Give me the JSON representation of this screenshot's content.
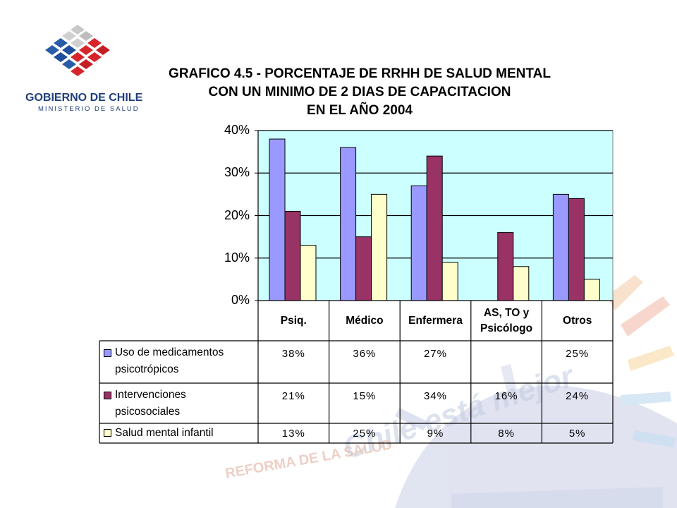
{
  "logo": {
    "line1": "GOBIERNO DE CHILE",
    "line2": "MINISTERIO DE SALUD"
  },
  "chart_data": {
    "type": "bar",
    "title_lines": [
      "GRAFICO 4.5 - PORCENTAJE DE RRHH DE SALUD MENTAL",
      "CON UN MINIMO DE 2 DIAS DE CAPACITACION",
      "EN EL AÑO 2004"
    ],
    "categories": [
      "Psiq.",
      "Médico",
      "Enfermera",
      "AS, TO y Psicólogo",
      "Otros"
    ],
    "category_lines": [
      [
        "Psiq."
      ],
      [
        "Médico"
      ],
      [
        "Enfermera"
      ],
      [
        "AS, TO y",
        "Psicólogo"
      ],
      [
        "Otros"
      ]
    ],
    "ylim": [
      0,
      40
    ],
    "yticks": [
      "0%",
      "10%",
      "20%",
      "30%",
      "40%"
    ],
    "grid": true,
    "plot_background": "#ccffff",
    "series": [
      {
        "name": "Uso de medicamentos psicotrópicos",
        "name_lines": [
          "Uso de medicamentos",
          "psicotrópicos"
        ],
        "color": "#9999ff",
        "values": [
          38,
          36,
          27,
          null,
          25
        ],
        "labels": [
          "38%",
          "36%",
          "27%",
          "",
          "25%"
        ]
      },
      {
        "name": "Intervenciones psicosociales",
        "name_lines": [
          "Intervenciones",
          "psicosociales"
        ],
        "color": "#993366",
        "values": [
          21,
          15,
          34,
          16,
          24
        ],
        "labels": [
          "21%",
          "15%",
          "34%",
          "16%",
          "24%"
        ]
      },
      {
        "name": "Salud mental infantil",
        "name_lines": [
          "Salud mental infantil"
        ],
        "color": "#ffffcc",
        "values": [
          13,
          25,
          9,
          8,
          5
        ],
        "labels": [
          "13%",
          "25%",
          "9%",
          "8%",
          "5%"
        ]
      }
    ]
  },
  "decoration": {
    "slogan": "Chile está mejor",
    "reform": "REFORMA DE LA SALUD"
  }
}
